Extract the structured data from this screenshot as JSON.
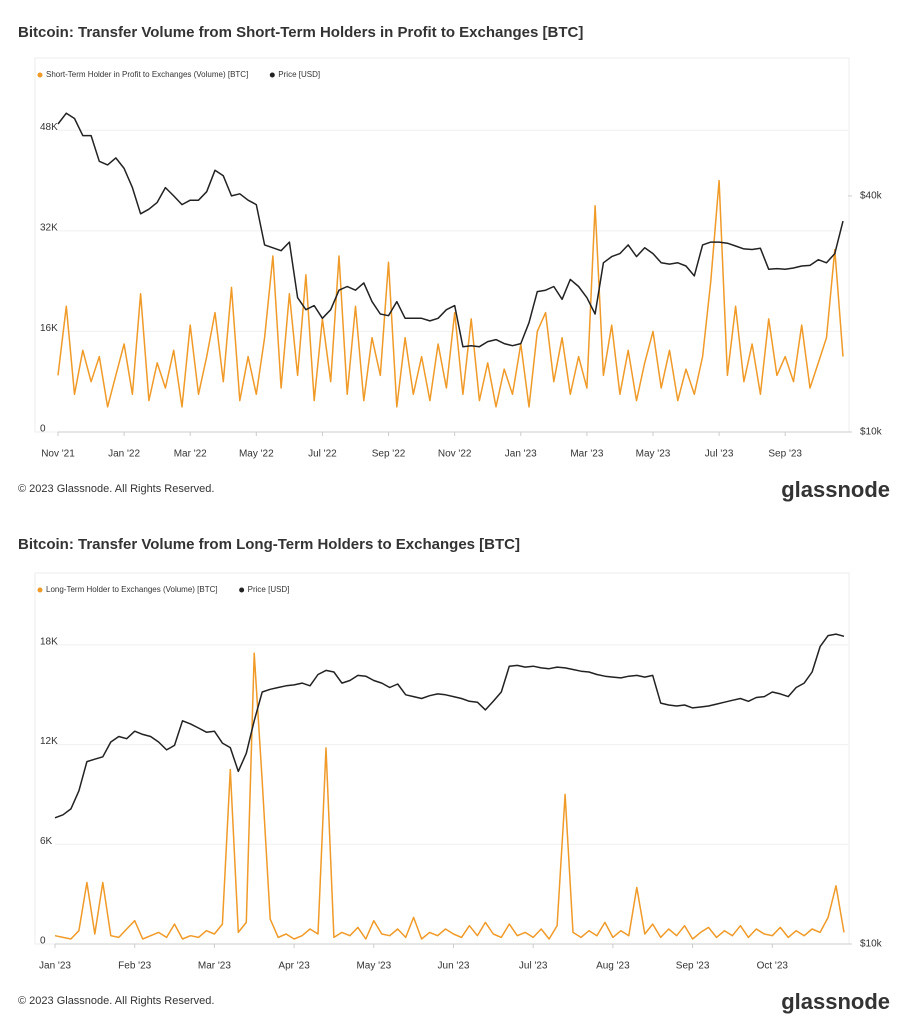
{
  "chart_data": [
    {
      "type": "line",
      "title": "Bitcoin: Transfer Volume from Short-Term Holders in Profit to Exchanges [BTC]",
      "source": "© 2023 Glassnode. All Rights Reserved.",
      "brand": "glassnode",
      "x": [
        0,
        0.25,
        0.5,
        0.75,
        1,
        1.25,
        1.5,
        1.75,
        2,
        2.25,
        2.5,
        2.75,
        3,
        3.25,
        3.5,
        3.75,
        4,
        4.25,
        4.5,
        4.75,
        5,
        5.25,
        5.5,
        5.75,
        6,
        6.25,
        6.5,
        6.75,
        7,
        7.25,
        7.5,
        7.75,
        8,
        8.25,
        8.5,
        8.75,
        9,
        9.25,
        9.5,
        9.75,
        10,
        10.25,
        10.5,
        10.75,
        11,
        11.25,
        11.5,
        11.75,
        12,
        12.25,
        12.5,
        12.75,
        13,
        13.25,
        13.5,
        13.75,
        14,
        14.25,
        14.5,
        14.75,
        15,
        15.25,
        15.5,
        15.75,
        16,
        16.25,
        16.5,
        16.75,
        17,
        17.25,
        17.5,
        17.75,
        18,
        18.25,
        18.5,
        18.75,
        19,
        19.25,
        19.5,
        19.75,
        20,
        20.25,
        20.5,
        20.75,
        21,
        21.25,
        21.5,
        21.75,
        22,
        22.25,
        22.5,
        22.75,
        23,
        23.25,
        23.5,
        23.75
      ],
      "xlim": [
        0,
        23.9
      ],
      "xticks": [
        {
          "value": 0,
          "label": "Nov '21"
        },
        {
          "value": 2,
          "label": "Jan '22"
        },
        {
          "value": 4,
          "label": "Mar '22"
        },
        {
          "value": 6,
          "label": "May '22"
        },
        {
          "value": 8,
          "label": "Jul '22"
        },
        {
          "value": 10,
          "label": "Sep '22"
        },
        {
          "value": 12,
          "label": "Nov '22"
        },
        {
          "value": 14,
          "label": "Jan '23"
        },
        {
          "value": 16,
          "label": "Mar '23"
        },
        {
          "value": 18,
          "label": "May '23"
        },
        {
          "value": 20,
          "label": "Jul '23"
        },
        {
          "value": 22,
          "label": "Sep '23"
        }
      ],
      "ylim": [
        0,
        56000
      ],
      "yticks": [
        0,
        {
          "value": 16000,
          "label": "16K"
        },
        {
          "value": 32000,
          "label": "32K"
        },
        {
          "value": 48000,
          "label": "48K"
        }
      ],
      "y2lim": [
        10000,
        79000
      ],
      "y2scale": "log",
      "y2ticks": [
        {
          "value": 10000,
          "label": "$10k"
        },
        {
          "value": 40000,
          "label": "$40k"
        }
      ],
      "grid": true,
      "series": [
        {
          "name": "Short-Term Holder in Profit to Exchanges (Volume) [BTC]",
          "color": "#f09a28",
          "axis": "y",
          "values": [
            9000,
            20000,
            6000,
            13000,
            8000,
            12000,
            4000,
            9000,
            14000,
            6000,
            22000,
            5000,
            11000,
            7000,
            13000,
            4000,
            17000,
            6000,
            12000,
            19000,
            8000,
            23000,
            5000,
            12000,
            6000,
            15000,
            28000,
            7000,
            22000,
            9000,
            25000,
            5000,
            18000,
            8000,
            28000,
            6000,
            20000,
            5000,
            15000,
            9000,
            27000,
            4000,
            15000,
            6000,
            12000,
            5000,
            14000,
            7000,
            19000,
            6000,
            18000,
            5000,
            11000,
            4000,
            10000,
            6000,
            14000,
            4000,
            16000,
            19000,
            8000,
            15000,
            6000,
            12000,
            7000,
            36000,
            9000,
            17000,
            6000,
            13000,
            5000,
            11000,
            16000,
            7000,
            13000,
            5000,
            10000,
            6000,
            12000,
            24000,
            40000,
            9000,
            20000,
            8000,
            14000,
            6000,
            18000,
            9000,
            12000,
            8000,
            17000,
            7000,
            11000,
            15000,
            29000,
            12000
          ]
        },
        {
          "name": "Price [USD]",
          "color": "#222222",
          "axis": "y2",
          "values": [
            61000,
            65000,
            63000,
            57000,
            57000,
            49000,
            48000,
            50000,
            47000,
            42000,
            36000,
            37000,
            38500,
            42000,
            40000,
            38000,
            39000,
            39000,
            41000,
            46500,
            45000,
            40000,
            40500,
            39000,
            38000,
            30000,
            29500,
            29000,
            30500,
            22000,
            20500,
            21000,
            19500,
            20500,
            23000,
            23500,
            23000,
            24000,
            21500,
            20000,
            19800,
            21500,
            19500,
            19500,
            19500,
            19200,
            19500,
            20500,
            21000,
            16500,
            16600,
            16500,
            17000,
            17200,
            16800,
            16600,
            16800,
            19000,
            22800,
            23000,
            23500,
            21800,
            24500,
            23500,
            22000,
            20000,
            27000,
            28000,
            28500,
            30000,
            28000,
            29500,
            28500,
            27000,
            26800,
            27000,
            26500,
            25000,
            30000,
            30500,
            30500,
            30300,
            29800,
            29300,
            29200,
            29400,
            26000,
            26100,
            26000,
            26200,
            26500,
            26600,
            27500,
            27000,
            28500,
            34500
          ]
        }
      ]
    },
    {
      "type": "line",
      "title": "Bitcoin: Transfer Volume from Long-Term Holders to Exchanges [BTC]",
      "source": "© 2023 Glassnode. All Rights Reserved.",
      "brand": "glassnode",
      "x": [
        0,
        0.1,
        0.2,
        0.3,
        0.4,
        0.5,
        0.6,
        0.7,
        0.8,
        0.9,
        1,
        1.1,
        1.2,
        1.3,
        1.4,
        1.5,
        1.6,
        1.7,
        1.8,
        1.9,
        2,
        2.1,
        2.2,
        2.3,
        2.4,
        2.5,
        2.6,
        2.7,
        2.8,
        2.9,
        3,
        3.1,
        3.2,
        3.3,
        3.4,
        3.5,
        3.6,
        3.7,
        3.8,
        3.9,
        4,
        4.1,
        4.2,
        4.3,
        4.4,
        4.5,
        4.6,
        4.7,
        4.8,
        4.9,
        5,
        5.1,
        5.2,
        5.3,
        5.4,
        5.5,
        5.6,
        5.7,
        5.8,
        5.9,
        6,
        6.1,
        6.2,
        6.3,
        6.4,
        6.5,
        6.6,
        6.7,
        6.8,
        6.9,
        7,
        7.1,
        7.2,
        7.3,
        7.4,
        7.5,
        7.6,
        7.7,
        7.8,
        7.9,
        8,
        8.1,
        8.2,
        8.3,
        8.4,
        8.5,
        8.6,
        8.7,
        8.8,
        8.9,
        9,
        9.1,
        9.2,
        9.3,
        9.4,
        9.5,
        9.6,
        9.7,
        9.8,
        9.9
      ],
      "xlim": [
        0,
        9.95
      ],
      "xticks": [
        {
          "value": 0,
          "label": "Jan '23"
        },
        {
          "value": 1,
          "label": "Feb '23"
        },
        {
          "value": 2,
          "label": "Mar '23"
        },
        {
          "value": 3,
          "label": "Apr '23"
        },
        {
          "value": 4,
          "label": "May '23"
        },
        {
          "value": 5,
          "label": "Jun '23"
        },
        {
          "value": 6,
          "label": "Jul '23"
        },
        {
          "value": 7,
          "label": "Aug '23"
        },
        {
          "value": 8,
          "label": "Sep '23"
        },
        {
          "value": 9,
          "label": "Oct '23"
        }
      ],
      "ylim": [
        0,
        21000
      ],
      "yticks": [
        0,
        {
          "value": 6000,
          "label": "6K"
        },
        {
          "value": 12000,
          "label": "12K"
        },
        {
          "value": 18000,
          "label": "18K"
        }
      ],
      "y2lim": [
        10000,
        40600
      ],
      "y2scale": "log",
      "y2ticks": [
        {
          "value": 10000,
          "label": "$10k"
        }
      ],
      "grid": true,
      "series": [
        {
          "name": "Long-Term Holder to Exchanges (Volume) [BTC]",
          "color": "#f09a28",
          "axis": "y",
          "values": [
            500,
            400,
            300,
            800,
            3700,
            600,
            3700,
            500,
            400,
            900,
            1400,
            300,
            500,
            700,
            400,
            1200,
            300,
            500,
            400,
            800,
            600,
            1200,
            10500,
            700,
            1300,
            17500,
            9800,
            1500,
            400,
            600,
            300,
            500,
            900,
            600,
            11800,
            400,
            700,
            500,
            1000,
            300,
            1400,
            600,
            500,
            900,
            400,
            1600,
            300,
            700,
            500,
            900,
            600,
            400,
            1100,
            500,
            1300,
            600,
            400,
            1200,
            500,
            700,
            400,
            900,
            300,
            1100,
            9000,
            700,
            400,
            800,
            500,
            1300,
            400,
            800,
            500,
            3400,
            600,
            1200,
            400,
            900,
            500,
            1100,
            300,
            700,
            1000,
            400,
            800,
            500,
            1100,
            400,
            900,
            600,
            500,
            1000,
            400,
            800,
            500,
            900,
            700,
            1600,
            3500,
            700
          ]
        },
        {
          "name": "Price [USD]",
          "color": "#222222",
          "axis": "y2",
          "values": [
            16600,
            16800,
            17200,
            18500,
            20800,
            21000,
            21200,
            22500,
            23000,
            22800,
            23500,
            23200,
            23000,
            22500,
            21800,
            22200,
            24500,
            24200,
            23800,
            23400,
            23500,
            22400,
            22000,
            20000,
            21500,
            24500,
            27500,
            27800,
            28000,
            28200,
            28300,
            28500,
            28200,
            29500,
            30000,
            29800,
            28500,
            28800,
            29400,
            29300,
            28800,
            28500,
            28000,
            28400,
            27200,
            27000,
            26800,
            27100,
            27300,
            27200,
            27000,
            26800,
            26500,
            26400,
            25600,
            26500,
            27500,
            30500,
            30600,
            30400,
            30500,
            30300,
            30200,
            30400,
            30300,
            30100,
            29900,
            29800,
            29500,
            29300,
            29200,
            29100,
            29300,
            29400,
            29200,
            29400,
            26300,
            26100,
            26000,
            26100,
            25800,
            25900,
            26000,
            26200,
            26400,
            26600,
            26800,
            26500,
            26900,
            27000,
            27500,
            27300,
            27000,
            28000,
            28500,
            29800,
            33000,
            34500,
            34700,
            34400
          ]
        }
      ]
    }
  ]
}
